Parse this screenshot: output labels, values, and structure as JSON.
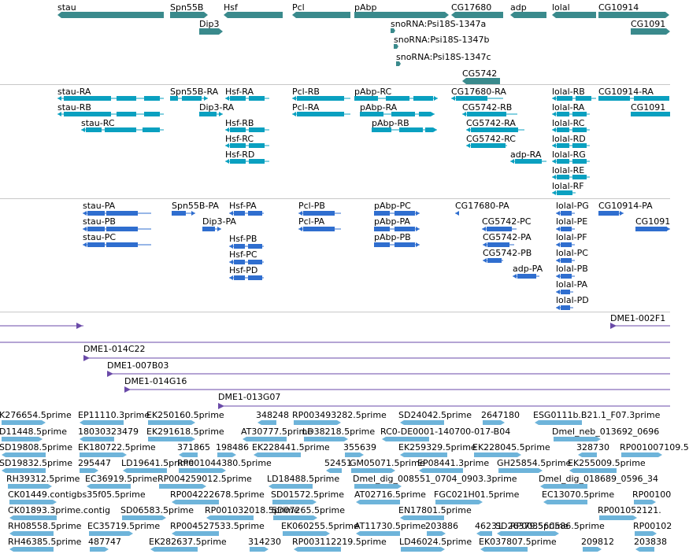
{
  "colors": {
    "gene": "#3a8a8c",
    "transcript_cds": "#0aa0c0",
    "protein": "#2f6ecf",
    "clone": "#6a4aa8",
    "est": "#6eb4da",
    "separator": "#c8c8c8"
  },
  "tracks": {
    "genes": [
      "stau",
      "Spn55B",
      "Hsf",
      "Pcl",
      "pAbp",
      "CG17680",
      "adp",
      "lolal",
      "CG10914",
      "Dip3",
      "CG1091",
      "snoRNA:Psi18S-1347a",
      "snoRNA:Psi18S-1347b",
      "snoRNA:Psi18S-1347c",
      "CG5742"
    ],
    "transcripts": [
      "stau-RA",
      "Spn55B-RA",
      "Hsf-RA",
      "Pcl-RB",
      "pAbp-RC",
      "CG17680-RA",
      "lolal-RB",
      "CG10914-RA",
      "stau-RB",
      "Dip3-RA",
      "Pcl-RA",
      "pAbp-RA",
      "CG5742-RB",
      "lolal-RA",
      "CG1091",
      "stau-RC",
      "Hsf-RB",
      "pAbp-RB",
      "CG5742-RA",
      "lolal-RC",
      "Hsf-RC",
      "CG5742-RC",
      "lolal-RD",
      "Hsf-RD",
      "adp-RA",
      "lolal-RG",
      "lolal-RE",
      "lolal-RF"
    ],
    "proteins": [
      "stau-PA",
      "Spn55B-PA",
      "Hsf-PA",
      "Pcl-PB",
      "pAbp-PC",
      "CG17680-PA",
      "lolal-PG",
      "CG10914-PA",
      "stau-PB",
      "Dip3-PA",
      "Pcl-PA",
      "pAbp-PA",
      "CG5742-PC",
      "lolal-PE",
      "CG1091",
      "stau-PC",
      "pAbp-PB",
      "CG5742-PA",
      "lolal-PF",
      "Hsf-PB",
      "CG5742-PB",
      "lolal-PC",
      "Hsf-PC",
      "adp-PA",
      "lolal-PB",
      "Hsf-PD",
      "lolal-PA",
      "lolal-PD"
    ],
    "clones": [
      "DME1-002F1",
      "DME1-014C22",
      "DME1-007B03",
      "DME1-014G16",
      "DME1-013G07"
    ],
    "ests": [
      "K276654.5prime",
      "EP11110.3prime",
      "EK250160.5prime",
      "348248",
      "RP003493282.5prime",
      "SD24042.5prime",
      "2647180",
      "ESG0111b.B21.1_F07.3prime",
      "D11448.5prime",
      "18030323479",
      "EK291618.5prime",
      "AT30777.5prime",
      "LD38218.5prime",
      "RC0-DE0001-140700-017-B04",
      "Dmel_neb_013692_0696",
      "SD19808.5prime",
      "EK180722.5prime",
      "371865",
      "198486",
      "EK228441.5prime",
      "355639",
      "EK259329.5prime",
      "EK228045.5prime",
      "328730",
      "RP001007109.5",
      "SD19832.5prime",
      "295447",
      "LD19641.5prime",
      "RP001044380.5prime",
      "52451",
      "GM05071.5prime",
      "EP08441.3prime",
      "GH25854.5prime",
      "EK255009.5prime",
      "RH39312.5prime",
      "EC36919.5prime",
      "RP004259012.5prime",
      "LD18488.5prime",
      "Dmel_dig_008551_0704_0903.3prime",
      "Dmel_dig_018689_0596_34",
      "CK01449.contigbs35f05.5prime",
      "RP004222678.5prime",
      "SD01572.5prime",
      "AT02716.5prime",
      "FGC021H01.5prime",
      "EC13070.5prime",
      "RP00100",
      "CK01893.3prime.contig",
      "SD06583.5prime",
      "RP001032018.5prime",
      "SD07265.5prime",
      "EN17801.5prime",
      "RP001052121.",
      "RH08558.5prime",
      "EC35719.5prime",
      "RP004527533.5prime",
      "EK060255.5prime",
      "AT11730.5prime",
      "203886",
      "46231",
      "RP003560586.5prime",
      "SD26379.5prime",
      "RP00102",
      "RH46385.5prime",
      "487747",
      "EK282637.5prime",
      "314230",
      "RP003112219.5prime",
      "LD46024.5prime",
      "EK037807.5prime",
      "209812",
      "203838"
    ]
  }
}
